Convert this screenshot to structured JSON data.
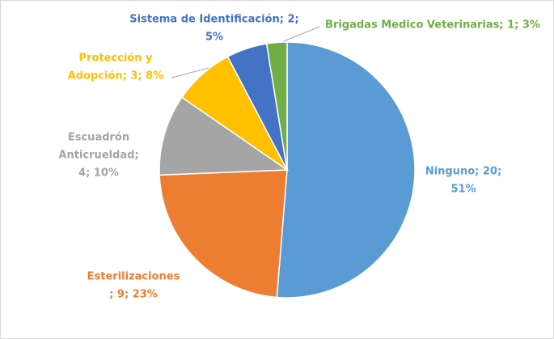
{
  "chart_data": {
    "type": "pie",
    "categories": [
      "Ninguno",
      "Esterilizaciones",
      "Escuadrón Anticrueldad",
      "Protección y Adopción",
      "Sistema de Identificación",
      "Brigadas Medico Veterinarias"
    ],
    "values": [
      20,
      9,
      4,
      3,
      2,
      1
    ],
    "colors": [
      "#5b9bd5",
      "#ed7d31",
      "#a5a5a5",
      "#ffc000",
      "#4472c4",
      "#70ad47"
    ],
    "value_labels": [
      [
        "Ninguno; 20;",
        "51%"
      ],
      [
        "Esterilizaciones",
        "; 9; 23%"
      ],
      [
        "Escuadrón",
        "Anticrueldad;",
        "4; 10%"
      ],
      [
        "Protección y",
        "Adopción; 3; 8%"
      ],
      [
        "Sistema de Identificación; 2;",
        "5%"
      ],
      [
        "Brigadas Medico Veterinarias; 1; 3%"
      ]
    ]
  }
}
